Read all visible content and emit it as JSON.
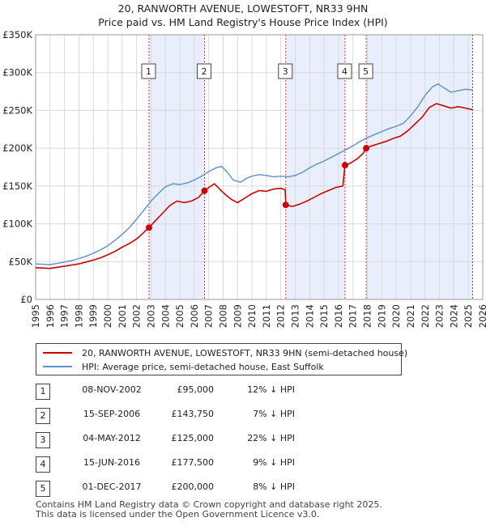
{
  "title": {
    "line1": "20, RANWORTH AVENUE, LOWESTOFT, NR33 9HN",
    "line2": "Price paid vs. HM Land Registry's House Price Index (HPI)"
  },
  "chart_data": {
    "type": "line",
    "title": "20, RANWORTH AVENUE, LOWESTOFT, NR33 9HN — Price paid vs. HM Land Registry's House Price Index (HPI)",
    "xlabel": "",
    "ylabel": "",
    "xlim": [
      1995,
      2026
    ],
    "ylim": [
      0,
      350000
    ],
    "y_ticks": [
      {
        "value": 0,
        "label": "£0"
      },
      {
        "value": 50000,
        "label": "£50K"
      },
      {
        "value": 100000,
        "label": "£100K"
      },
      {
        "value": 150000,
        "label": "£150K"
      },
      {
        "value": 200000,
        "label": "£200K"
      },
      {
        "value": 250000,
        "label": "£250K"
      },
      {
        "value": 300000,
        "label": "£300K"
      },
      {
        "value": 350000,
        "label": "£350K"
      }
    ],
    "x_ticks": [
      "1995",
      "1996",
      "1997",
      "1998",
      "1999",
      "2000",
      "2001",
      "2002",
      "2003",
      "2004",
      "2005",
      "2006",
      "2007",
      "2008",
      "2009",
      "2010",
      "2011",
      "2012",
      "2013",
      "2014",
      "2015",
      "2016",
      "2017",
      "2018",
      "2019",
      "2020",
      "2021",
      "2022",
      "2023",
      "2024",
      "2025",
      "2026"
    ],
    "grid": true,
    "colors": {
      "property": "#cc0000",
      "hpi": "#5b8fd0",
      "shade": "#e8eefb",
      "marker_line": "#cc0000",
      "forecast_line": "#555555"
    },
    "series": [
      {
        "name": "20, RANWORTH AVENUE, LOWESTOFT, NR33 9HN (semi-detached house)",
        "x": [
          1995.0,
          1995.5,
          1996.0,
          1996.5,
          1997.0,
          1997.5,
          1998.0,
          1998.5,
          1999.0,
          1999.5,
          2000.0,
          2000.5,
          2001.0,
          2001.5,
          2002.0,
          2002.5,
          2002.86,
          2003.3,
          2003.8,
          2004.3,
          2004.8,
          2005.3,
          2005.8,
          2006.3,
          2006.71,
          2007.0,
          2007.4,
          2007.8,
          2008.2,
          2008.6,
          2009.0,
          2009.5,
          2010.0,
          2010.5,
          2011.0,
          2011.5,
          2012.0,
          2012.3,
          2012.34,
          2012.8,
          2013.3,
          2013.8,
          2014.3,
          2014.8,
          2015.3,
          2015.8,
          2016.3,
          2016.45,
          2016.8,
          2017.3,
          2017.7,
          2017.92,
          2018.3,
          2018.8,
          2019.3,
          2019.8,
          2020.3,
          2020.8,
          2021.3,
          2021.8,
          2022.3,
          2022.8,
          2023.3,
          2023.8,
          2024.3,
          2024.8,
          2025.3
        ],
        "values": [
          42000,
          41500,
          41000,
          42500,
          44000,
          45500,
          47000,
          49500,
          52000,
          55000,
          59000,
          63500,
          69000,
          74000,
          80000,
          88500,
          95000,
          104000,
          114000,
          124000,
          130000,
          128000,
          130000,
          135000,
          143750,
          148000,
          153000,
          145000,
          138000,
          132000,
          128000,
          134000,
          140000,
          144000,
          143000,
          146000,
          147000,
          145000,
          125000,
          123000,
          126000,
          130000,
          135000,
          140000,
          144000,
          148000,
          150000,
          177500,
          180000,
          186000,
          193000,
          200000,
          203000,
          206000,
          209000,
          213000,
          216000,
          223000,
          232000,
          241000,
          254000,
          259000,
          256000,
          253000,
          255000,
          253000,
          251000
        ]
      },
      {
        "name": "HPI: Average price, semi-detached house, East Suffolk",
        "x": [
          1995.0,
          1995.5,
          1996.0,
          1996.5,
          1997.0,
          1997.5,
          1998.0,
          1998.5,
          1999.0,
          1999.5,
          2000.0,
          2000.5,
          2001.0,
          2001.5,
          2002.0,
          2002.5,
          2003.0,
          2003.5,
          2004.0,
          2004.5,
          2005.0,
          2005.5,
          2006.0,
          2006.5,
          2007.0,
          2007.5,
          2007.9,
          2008.3,
          2008.7,
          2009.2,
          2009.6,
          2010.0,
          2010.5,
          2011.0,
          2011.5,
          2012.0,
          2012.5,
          2013.0,
          2013.5,
          2014.0,
          2014.5,
          2015.0,
          2015.5,
          2016.0,
          2016.5,
          2017.0,
          2017.5,
          2018.0,
          2018.5,
          2019.0,
          2019.5,
          2020.0,
          2020.5,
          2021.0,
          2021.5,
          2022.0,
          2022.5,
          2022.9,
          2023.3,
          2023.8,
          2024.3,
          2024.8,
          2025.3
        ],
        "values": [
          47000,
          46500,
          46000,
          47500,
          49500,
          51500,
          54000,
          57000,
          61000,
          65500,
          71000,
          78000,
          86000,
          95000,
          106000,
          118000,
          130000,
          140000,
          149000,
          153000,
          152000,
          154000,
          158000,
          163000,
          169000,
          174000,
          176000,
          168000,
          158000,
          155000,
          160000,
          163000,
          165000,
          164000,
          162000,
          163000,
          162000,
          164000,
          168000,
          174000,
          179000,
          183000,
          188000,
          193000,
          198000,
          203000,
          209000,
          214000,
          218000,
          222000,
          226000,
          229000,
          233000,
          243000,
          255000,
          270000,
          281000,
          285000,
          280000,
          274000,
          276000,
          278000,
          277000
        ]
      }
    ],
    "sales": [
      {
        "num": "1",
        "x": 2002.86,
        "value": 95000
      },
      {
        "num": "2",
        "x": 2006.71,
        "value": 143750
      },
      {
        "num": "3",
        "x": 2012.34,
        "value": 125000
      },
      {
        "num": "4",
        "x": 2016.45,
        "value": 177500
      },
      {
        "num": "5",
        "x": 2017.92,
        "value": 200000
      }
    ],
    "shaded_ranges": [
      [
        2002.86,
        2006.71
      ],
      [
        2012.34,
        2016.45
      ],
      [
        2017.92,
        2025.3
      ]
    ],
    "forecast_start": 2025.3
  },
  "legend": {
    "property_label": "20, RANWORTH AVENUE, LOWESTOFT, NR33 9HN (semi-detached house)",
    "hpi_label": "HPI: Average price, semi-detached house, East Suffolk"
  },
  "table": [
    {
      "num": "1",
      "date": "08-NOV-2002",
      "price": "£95,000",
      "hpi": "12% ↓ HPI"
    },
    {
      "num": "2",
      "date": "15-SEP-2006",
      "price": "£143,750",
      "hpi": "7% ↓ HPI"
    },
    {
      "num": "3",
      "date": "04-MAY-2012",
      "price": "£125,000",
      "hpi": "22% ↓ HPI"
    },
    {
      "num": "4",
      "date": "15-JUN-2016",
      "price": "£177,500",
      "hpi": "9% ↓ HPI"
    },
    {
      "num": "5",
      "date": "01-DEC-2017",
      "price": "£200,000",
      "hpi": "8% ↓ HPI"
    }
  ],
  "footer": {
    "line1": "Contains HM Land Registry data © Crown copyright and database right 2025.",
    "line2": "This data is licensed under the Open Government Licence v3.0."
  }
}
